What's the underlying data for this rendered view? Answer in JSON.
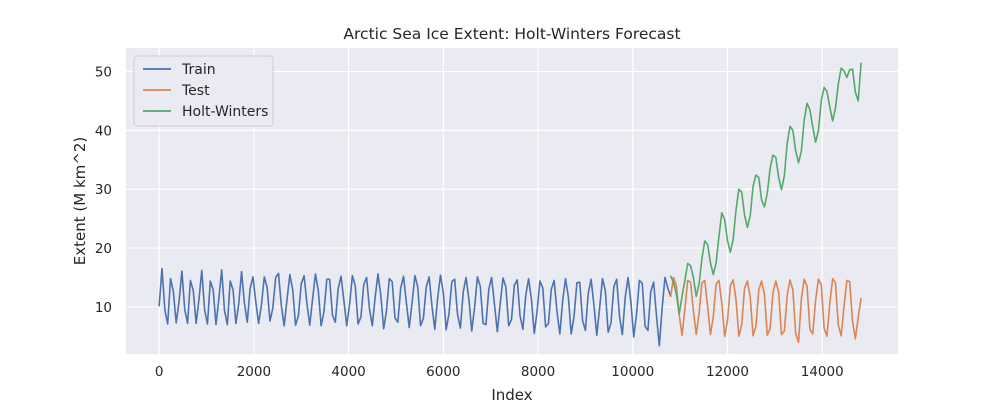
{
  "chart_data": {
    "type": "line",
    "title": "Arctic Sea Ice Extent: Holt-Winters Forecast",
    "xlabel": "Index",
    "ylabel": "Extent (M km^2)",
    "xlim": [
      -700,
      15600
    ],
    "ylim": [
      2,
      54
    ],
    "xticks": [
      0,
      2000,
      4000,
      6000,
      8000,
      10000,
      12000,
      14000
    ],
    "yticks": [
      10,
      20,
      30,
      40,
      50
    ],
    "grid": true,
    "legend_position": "top-left",
    "colors": {
      "background": "#eaeaf2",
      "grid": "#ffffff",
      "text": "#262626"
    },
    "series": [
      {
        "name": "Train",
        "color": "#4c72b0",
        "x": [
          0,
          60,
          120,
          180,
          240,
          300,
          360,
          420,
          480,
          540,
          600,
          660,
          720,
          780,
          840,
          900,
          960,
          1020,
          1080,
          1140,
          1200,
          1260,
          1320,
          1380,
          1440,
          1500,
          1560,
          1620,
          1680,
          1740,
          1800,
          1860,
          1920,
          1980,
          2040,
          2100,
          2160,
          2220,
          2280,
          2340,
          2400,
          2460,
          2520,
          2580,
          2640,
          2700,
          2760,
          2820,
          2880,
          2940,
          3000,
          3060,
          3120,
          3180,
          3240,
          3300,
          3360,
          3420,
          3480,
          3540,
          3600,
          3660,
          3720,
          3780,
          3840,
          3900,
          3960,
          4020,
          4080,
          4140,
          4200,
          4260,
          4320,
          4380,
          4440,
          4500,
          4560,
          4620,
          4680,
          4740,
          4800,
          4860,
          4920,
          4980,
          5040,
          5100,
          5160,
          5220,
          5280,
          5340,
          5400,
          5460,
          5520,
          5580,
          5640,
          5700,
          5760,
          5820,
          5880,
          5940,
          6000,
          6060,
          6120,
          6180,
          6240,
          6300,
          6360,
          6420,
          6480,
          6540,
          6600,
          6660,
          6720,
          6780,
          6840,
          6900,
          6960,
          7020,
          7080,
          7140,
          7200,
          7260,
          7320,
          7380,
          7440,
          7500,
          7560,
          7620,
          7680,
          7740,
          7800,
          7860,
          7920,
          7980,
          8040,
          8100,
          8160,
          8220,
          8280,
          8340,
          8400,
          8460,
          8520,
          8580,
          8640,
          8700,
          8760,
          8820,
          8880,
          8940,
          9000,
          9060,
          9120,
          9180,
          9240,
          9300,
          9360,
          9420,
          9480,
          9540,
          9600,
          9660,
          9720,
          9780,
          9840,
          9900,
          9960,
          10020,
          10080,
          10140,
          10200,
          10260,
          10320,
          10380,
          10440,
          10500,
          10560,
          10620,
          10680,
          10740,
          10800
        ],
        "y": [
          10.2,
          16.5,
          9.5,
          7.1,
          14.8,
          12.6,
          7.3,
          10.9,
          16.1,
          9.6,
          7.2,
          14.5,
          12.8,
          7.2,
          11.2,
          16.2,
          9.5,
          7.1,
          14.4,
          12.9,
          7.0,
          11.3,
          16.3,
          9.4,
          7.0,
          14.4,
          12.9,
          7.2,
          10.5,
          16.0,
          10.7,
          7.4,
          13.1,
          15.1,
          10.9,
          7.2,
          10.4,
          15.1,
          13.3,
          7.6,
          9.8,
          15.0,
          15.7,
          10.2,
          6.8,
          11.3,
          15.5,
          12.9,
          6.9,
          8.5,
          13.9,
          15.3,
          10.6,
          6.9,
          11.4,
          15.6,
          12.8,
          6.8,
          9.2,
          14.7,
          14.7,
          8.6,
          7.4,
          13.1,
          15.2,
          11.1,
          6.8,
          10.4,
          15.3,
          13.6,
          7.1,
          8.3,
          13.8,
          15.0,
          9.7,
          6.8,
          11.6,
          15.6,
          12.0,
          6.3,
          9.4,
          14.8,
          14.3,
          8.1,
          7.4,
          13.2,
          15.2,
          10.7,
          6.5,
          10.7,
          15.3,
          13.4,
          6.8,
          8.1,
          13.4,
          15.1,
          10.1,
          6.2,
          11.5,
          15.4,
          12.4,
          6.1,
          8.9,
          14.3,
          14.7,
          8.7,
          6.4,
          12.5,
          15.0,
          11.3,
          5.9,
          9.9,
          15.1,
          13.5,
          7.2,
          7.0,
          13.0,
          15.0,
          10.4,
          5.8,
          10.5,
          14.9,
          13.4,
          6.8,
          7.9,
          13.7,
          14.6,
          8.5,
          6.2,
          11.9,
          14.8,
          11.3,
          5.5,
          9.3,
          14.4,
          13.2,
          6.6,
          7.2,
          13.0,
          14.5,
          9.2,
          5.4,
          11.1,
          14.8,
          11.7,
          5.4,
          8.4,
          14.1,
          14.2,
          7.7,
          6.0,
          12.3,
          14.7,
          10.3,
          5.2,
          9.8,
          14.8,
          12.8,
          5.7,
          7.3,
          13.4,
          14.7,
          8.4,
          5.3,
          11.6,
          15.0,
          10.9,
          4.9,
          8.8,
          14.5,
          14.0,
          6.7,
          6.0,
          12.6,
          14.2,
          8.6,
          3.4,
          9.8,
          15.0,
          13.2,
          11.8
        ]
      },
      {
        "name": "Test",
        "color": "#dd8452",
        "x": [
          10800,
          10860,
          10920,
          10980,
          11040,
          11100,
          11160,
          11220,
          11280,
          11340,
          11400,
          11460,
          11520,
          11580,
          11640,
          11700,
          11760,
          11820,
          11880,
          11940,
          12000,
          12060,
          12120,
          12180,
          12240,
          12300,
          12360,
          12420,
          12480,
          12540,
          12600,
          12660,
          12720,
          12780,
          12840,
          12900,
          12960,
          13020,
          13080,
          13140,
          13200,
          13260,
          13320,
          13380,
          13440,
          13500,
          13560,
          13620,
          13680,
          13740,
          13800,
          13860,
          13920,
          13980,
          14040,
          14100,
          14160,
          14220,
          14280,
          14340,
          14400,
          14460,
          14520,
          14580,
          14640,
          14700,
          14760,
          14820
        ],
        "y": [
          11.8,
          15.0,
          13.6,
          8.7,
          5.2,
          9.6,
          14.5,
          14.2,
          9.3,
          5.3,
          8.9,
          14.1,
          14.5,
          10.1,
          5.3,
          8.3,
          13.9,
          14.5,
          10.6,
          5.0,
          7.7,
          13.6,
          14.6,
          11.2,
          5.0,
          7.0,
          13.2,
          14.4,
          11.7,
          5.1,
          6.7,
          12.9,
          14.4,
          12.1,
          5.2,
          6.3,
          12.4,
          14.4,
          12.5,
          5.3,
          5.9,
          12.0,
          14.6,
          12.9,
          5.4,
          4.0,
          11.4,
          14.7,
          13.5,
          6.2,
          5.4,
          11.1,
          14.7,
          13.8,
          6.4,
          5.0,
          10.6,
          14.8,
          14.1,
          6.9,
          5.1,
          10.1,
          14.5,
          14.3,
          7.6,
          4.6,
          8.3,
          11.4
        ]
      },
      {
        "name": "Holt-Winters",
        "color": "#55a868",
        "x": [
          10800,
          10860,
          10920,
          10980,
          11040,
          11100,
          11160,
          11220,
          11280,
          11340,
          11400,
          11460,
          11520,
          11580,
          11640,
          11700,
          11760,
          11820,
          11880,
          11940,
          12000,
          12060,
          12120,
          12180,
          12240,
          12300,
          12360,
          12420,
          12480,
          12540,
          12600,
          12660,
          12720,
          12780,
          12840,
          12900,
          12960,
          13020,
          13080,
          13140,
          13200,
          13260,
          13320,
          13380,
          13440,
          13500,
          13560,
          13620,
          13680,
          13740,
          13800,
          13860,
          13920,
          13980,
          14040,
          14100,
          14160,
          14220,
          14280,
          14340,
          14400,
          14460,
          14520,
          14580,
          14640,
          14700,
          14760,
          14820
        ],
        "y": [
          15.2,
          14.2,
          12.2,
          8.8,
          11.8,
          14.5,
          17.4,
          17.0,
          15.0,
          11.8,
          13.9,
          18.2,
          21.2,
          20.6,
          17.5,
          15.5,
          17.5,
          22.0,
          26.0,
          24.8,
          21.3,
          19.3,
          21.5,
          26.5,
          30.0,
          29.5,
          25.6,
          23.5,
          25.5,
          30.5,
          32.4,
          32.0,
          28.2,
          27.0,
          29.3,
          33.5,
          35.8,
          35.4,
          32.0,
          29.9,
          32.3,
          37.8,
          40.7,
          40.0,
          36.5,
          34.5,
          36.5,
          41.8,
          44.6,
          43.5,
          40.6,
          38.0,
          40.0,
          45.1,
          47.3,
          46.6,
          44.0,
          41.6,
          43.8,
          47.9,
          50.6,
          50.1,
          49.0,
          50.3,
          50.4,
          46.5,
          45.0,
          51.4
        ]
      }
    ]
  }
}
